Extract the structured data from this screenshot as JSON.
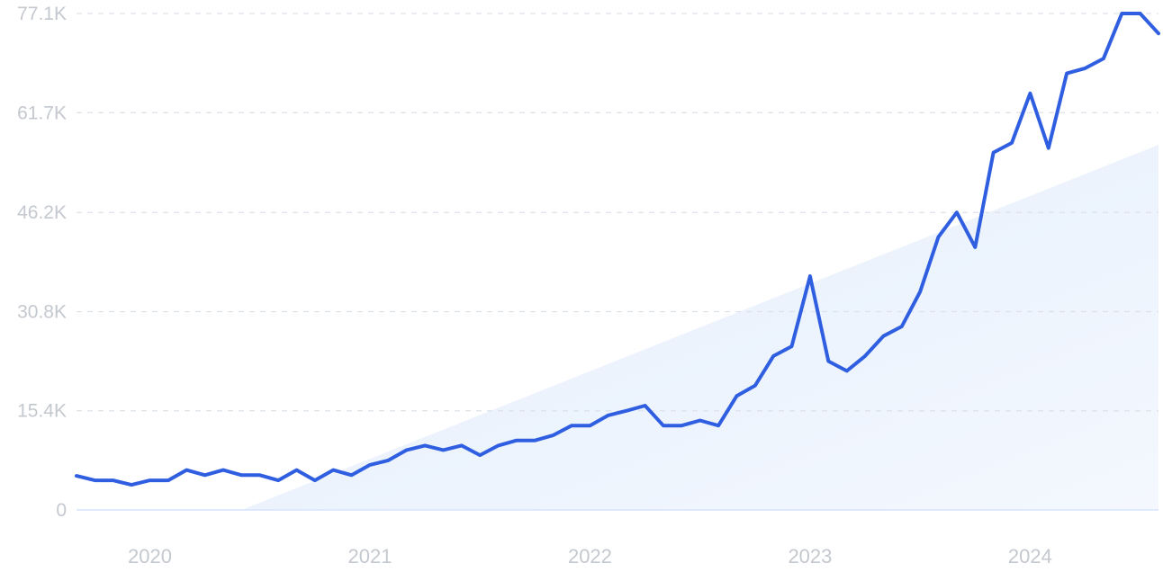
{
  "chart_data": {
    "type": "line",
    "title": "",
    "xlabel": "",
    "ylabel": "",
    "ylim": [
      0,
      77100
    ],
    "y_ticks": [
      0,
      15400,
      30800,
      46200,
      61700,
      77100
    ],
    "y_tick_labels": [
      "0",
      "15.4K",
      "30.8K",
      "46.2K",
      "61.7K",
      "77.1K"
    ],
    "x_tick_labels": [
      "2020",
      "2021",
      "2022",
      "2023",
      "2024"
    ],
    "x_tick_positions": [
      "2020-01",
      "2021-01",
      "2022-01",
      "2023-01",
      "2024-01"
    ],
    "grid": true,
    "legend": "none",
    "colors": {
      "line": "#2f5fe0",
      "trend_fill": "#e8f1fd",
      "grid": "#dde2ea",
      "tick_text": "#c4c8cf"
    },
    "trend": {
      "x": [
        "2020-06",
        "2024-08"
      ],
      "y": [
        0,
        56700
      ]
    },
    "series": [
      {
        "x": [
          "2019-09",
          "2019-10",
          "2019-11",
          "2019-12",
          "2020-01",
          "2020-02",
          "2020-03",
          "2020-04",
          "2020-05",
          "2020-06",
          "2020-07",
          "2020-08",
          "2020-09",
          "2020-10",
          "2020-11",
          "2020-12",
          "2021-01",
          "2021-02",
          "2021-03",
          "2021-04",
          "2021-05",
          "2021-06",
          "2021-07",
          "2021-08",
          "2021-09",
          "2021-10",
          "2021-11",
          "2021-12",
          "2022-01",
          "2022-02",
          "2022-03",
          "2022-04",
          "2022-05",
          "2022-06",
          "2022-07",
          "2022-08",
          "2022-09",
          "2022-10",
          "2022-11",
          "2022-12",
          "2023-01",
          "2023-02",
          "2023-03",
          "2023-04",
          "2023-05",
          "2023-06",
          "2023-07",
          "2023-08",
          "2023-09",
          "2023-10",
          "2023-11",
          "2023-12",
          "2024-01",
          "2024-02",
          "2024-03",
          "2024-04",
          "2024-05",
          "2024-06",
          "2024-07",
          "2024-08"
        ],
        "values": [
          5300,
          4600,
          4600,
          3900,
          4600,
          4600,
          6200,
          5400,
          6200,
          5400,
          5400,
          4600,
          6200,
          4600,
          6200,
          5400,
          7000,
          7700,
          9300,
          10000,
          9300,
          10000,
          8500,
          10000,
          10800,
          10800,
          11600,
          13100,
          13100,
          14700,
          15400,
          16200,
          13100,
          13100,
          13900,
          13100,
          17700,
          19300,
          23900,
          25400,
          36300,
          23100,
          21600,
          23900,
          27000,
          28500,
          33900,
          42400,
          46200,
          40800,
          55500,
          57000,
          64700,
          56200,
          67800,
          68600,
          70100,
          77100,
          77100,
          74000
        ]
      }
    ]
  }
}
